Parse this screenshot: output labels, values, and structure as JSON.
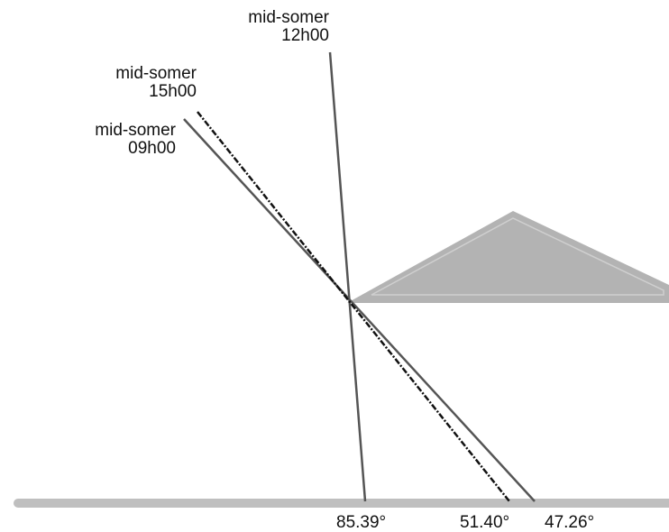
{
  "sun_rays": [
    {
      "name": "mid-somer",
      "time": "12h00"
    },
    {
      "name": "mid-somer",
      "time": "15h00"
    },
    {
      "name": "mid-somer",
      "time": "09h00"
    }
  ],
  "angles": [
    "85.39°",
    "51.40°",
    "47.26°"
  ],
  "colors": {
    "ground": "#bfbfbf",
    "roof": "#b3b3b3",
    "roof_inner": "#cfcfcf",
    "ray": "#555555",
    "ray_dashed": "#111111"
  }
}
